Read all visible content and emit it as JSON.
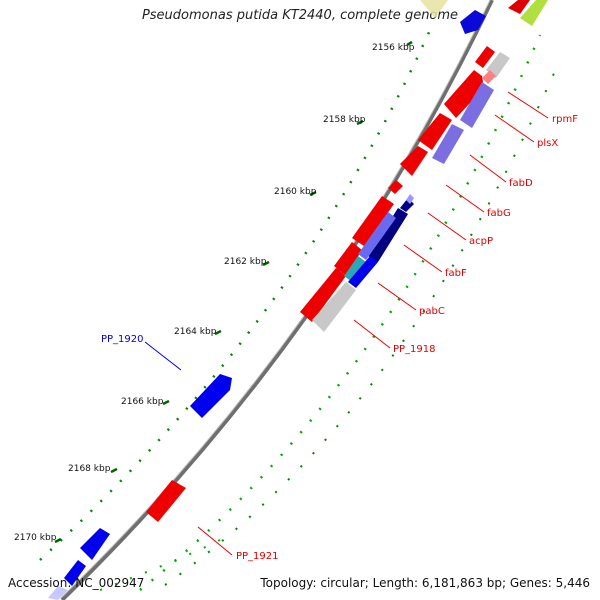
{
  "title": "Pseudomonas putida KT2440, complete genome",
  "footer": {
    "accession": "Accession: NC_002947",
    "summary": "Topology: circular; Length: 6,181,863 bp; Genes: 5,446"
  },
  "colors": {
    "forward_gene": "#0000ee",
    "reverse_gene": "#ee0000",
    "gc_skew": "#00aa00",
    "ruler": "#007700",
    "backbone": "#777777"
  },
  "scale_marks": [
    {
      "label": "2156 kbp"
    },
    {
      "label": "2158 kbp"
    },
    {
      "label": "2160 kbp"
    },
    {
      "label": "2162 kbp"
    },
    {
      "label": "2164 kbp"
    },
    {
      "label": "2166 kbp"
    },
    {
      "label": "2168 kbp"
    },
    {
      "label": "2170 kbp"
    }
  ],
  "gene_labels": [
    {
      "name": "rpmF",
      "strand": "reverse"
    },
    {
      "name": "plsX",
      "strand": "reverse"
    },
    {
      "name": "fabD",
      "strand": "reverse"
    },
    {
      "name": "fabG",
      "strand": "reverse"
    },
    {
      "name": "acpP",
      "strand": "reverse"
    },
    {
      "name": "fabF",
      "strand": "reverse"
    },
    {
      "name": "pabC",
      "strand": "reverse"
    },
    {
      "name": "PP_1918",
      "strand": "reverse"
    },
    {
      "name": "PP_1920",
      "strand": "forward"
    },
    {
      "name": "PP_1921",
      "strand": "reverse"
    }
  ]
}
